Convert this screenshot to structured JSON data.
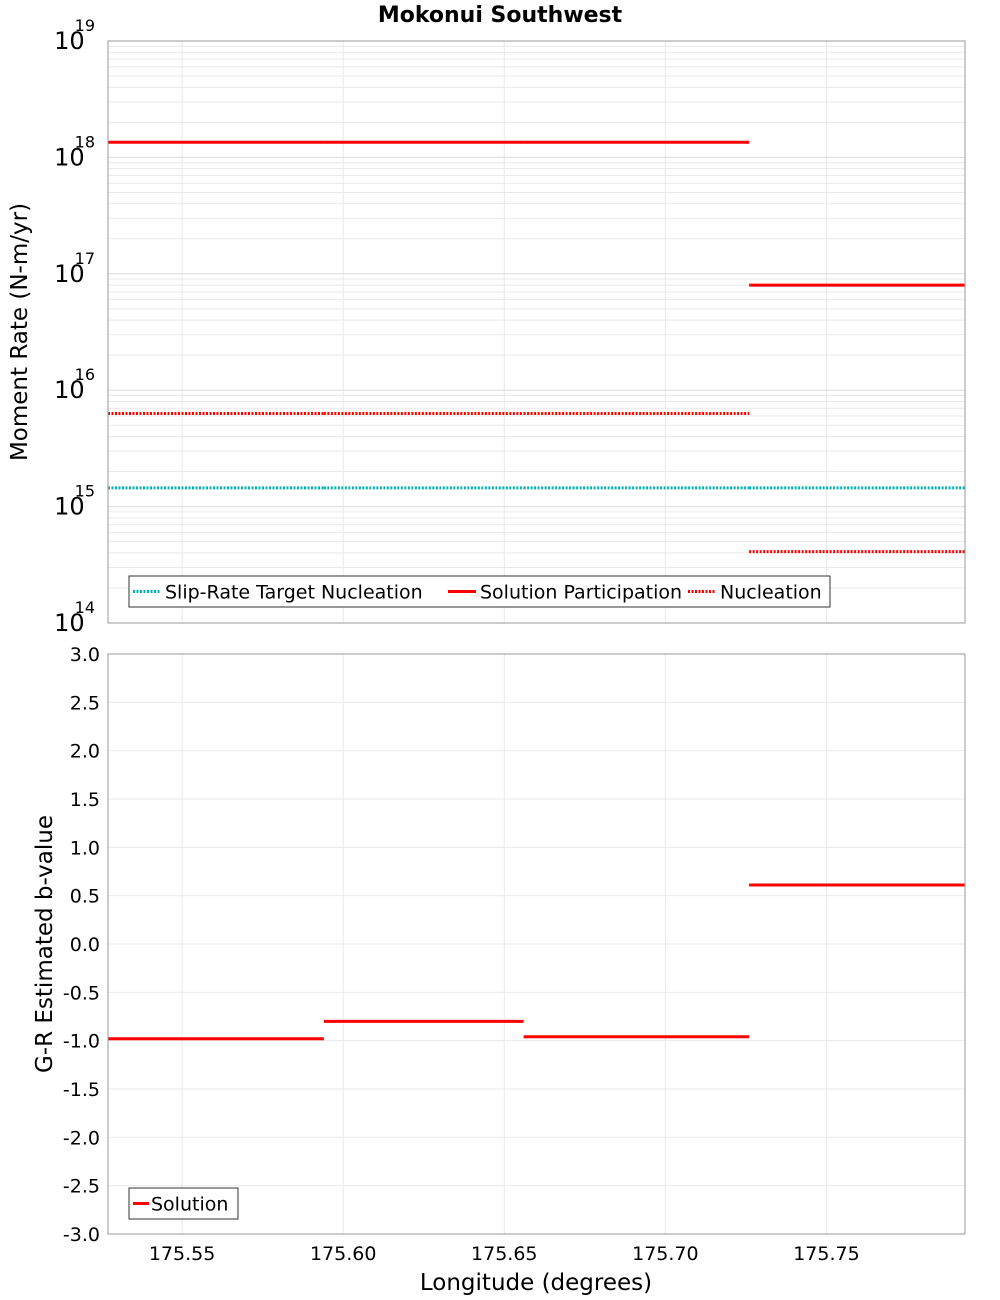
{
  "chart_data": [
    {
      "id": "moment",
      "type": "line",
      "title": "Mokonui Southwest",
      "xlabel": "",
      "ylabel": "Moment Rate (N-m/yr)",
      "yscale": "log",
      "xlim": [
        175.527,
        175.793
      ],
      "ylim": [
        100000000000000.0,
        1e+19
      ],
      "grid": true,
      "y_ticks": [
        {
          "value": 1e+19,
          "base": "10",
          "exp": "19"
        },
        {
          "value": 1e+18,
          "base": "10",
          "exp": "18"
        },
        {
          "value": 1e+17,
          "base": "10",
          "exp": "17"
        },
        {
          "value": 1e+16,
          "base": "10",
          "exp": "16"
        },
        {
          "value": 1000000000000000.0,
          "base": "10",
          "exp": "15"
        },
        {
          "value": 100000000000000.0,
          "base": "10",
          "exp": "14"
        }
      ],
      "legend_position": "bottom-left",
      "series": [
        {
          "name": "Slip-Rate Target Nucleation",
          "color": "#00b3b3",
          "style": "dotted",
          "segments": [
            {
              "x": [
                175.527,
                175.594
              ],
              "y": 1450000000000000.0
            },
            {
              "x": [
                175.594,
                175.656
              ],
              "y": 1450000000000000.0
            },
            {
              "x": [
                175.656,
                175.726
              ],
              "y": 1450000000000000.0
            },
            {
              "x": [
                175.726,
                175.793
              ],
              "y": 1450000000000000.0
            }
          ]
        },
        {
          "name": "Solution Participation",
          "color": "#ff0000",
          "style": "solid",
          "segments": [
            {
              "x": [
                175.527,
                175.594
              ],
              "y": 1.35e+18
            },
            {
              "x": [
                175.594,
                175.656
              ],
              "y": 1.35e+18
            },
            {
              "x": [
                175.656,
                175.726
              ],
              "y": 1.35e+18
            },
            {
              "x": [
                175.726,
                175.793
              ],
              "y": 8e+16
            }
          ]
        },
        {
          "name": "Nucleation",
          "color": "#ff0000",
          "style": "dotted",
          "segments": [
            {
              "x": [
                175.527,
                175.594
              ],
              "y": 6300000000000000.0
            },
            {
              "x": [
                175.594,
                175.656
              ],
              "y": 6300000000000000.0
            },
            {
              "x": [
                175.656,
                175.726
              ],
              "y": 6300000000000000.0
            },
            {
              "x": [
                175.726,
                175.793
              ],
              "y": 410000000000000.0
            }
          ]
        }
      ]
    },
    {
      "id": "bvalue",
      "type": "line",
      "title": "",
      "xlabel": "Longitude (degrees)",
      "ylabel": "G-R Estimated b-value",
      "yscale": "linear",
      "xlim": [
        175.527,
        175.793
      ],
      "ylim": [
        -3.0,
        3.0
      ],
      "grid": true,
      "x_ticks": [
        "175.55",
        "175.60",
        "175.65",
        "175.70",
        "175.75"
      ],
      "y_ticks": [
        "3.0",
        "2.5",
        "2.0",
        "1.5",
        "1.0",
        "0.5",
        "0.0",
        "-0.5",
        "-1.0",
        "-1.5",
        "-2.0",
        "-2.5",
        "-3.0"
      ],
      "legend_position": "bottom-left",
      "series": [
        {
          "name": "Solution",
          "color": "#ff0000",
          "style": "solid",
          "segments": [
            {
              "x": [
                175.527,
                175.594
              ],
              "y": -0.98
            },
            {
              "x": [
                175.594,
                175.656
              ],
              "y": -0.8
            },
            {
              "x": [
                175.656,
                175.726
              ],
              "y": -0.96
            },
            {
              "x": [
                175.726,
                175.793
              ],
              "y": 0.61
            }
          ]
        }
      ]
    }
  ]
}
